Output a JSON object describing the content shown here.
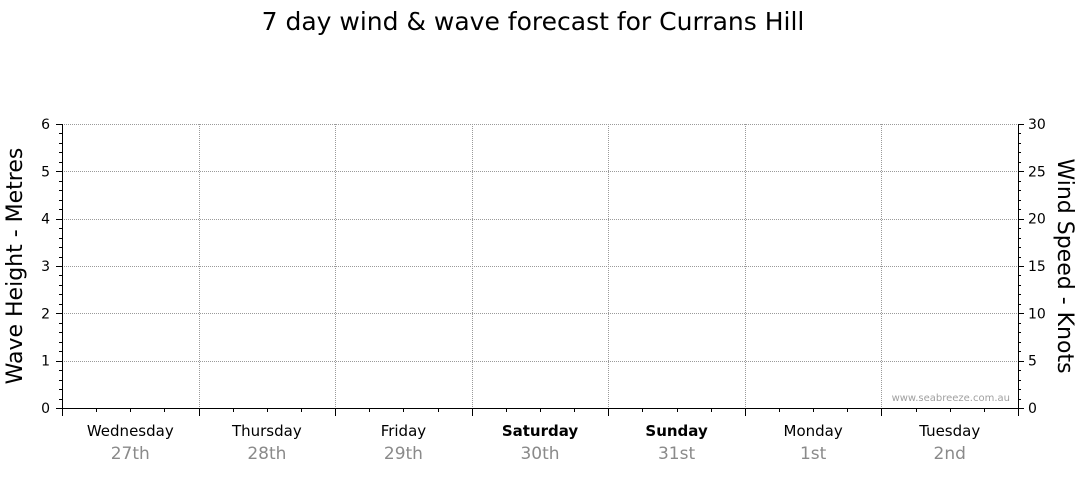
{
  "chart_data": {
    "type": "line",
    "title": "7 day wind & wave forecast for Currans Hill",
    "ylabel_left": "Wave Height - Metres",
    "ylabel_right": "Wind Speed - Knots",
    "ylim_left": [
      0,
      6
    ],
    "ylim_right": [
      0,
      30
    ],
    "yticks_left": [
      0,
      1,
      2,
      3,
      4,
      5,
      6
    ],
    "yticks_right": [
      0,
      5,
      10,
      15,
      20,
      25,
      30
    ],
    "grid": true,
    "days": [
      {
        "name": "Wednesday",
        "date": "27th",
        "bold": false
      },
      {
        "name": "Thursday",
        "date": "28th",
        "bold": false
      },
      {
        "name": "Friday",
        "date": "29th",
        "bold": false
      },
      {
        "name": "Saturday",
        "date": "30th",
        "bold": true
      },
      {
        "name": "Sunday",
        "date": "31st",
        "bold": true
      },
      {
        "name": "Monday",
        "date": "1st",
        "bold": false
      },
      {
        "name": "Tuesday",
        "date": "2nd",
        "bold": false
      }
    ],
    "series": [],
    "watermark": "www.seabreeze.com.au"
  }
}
